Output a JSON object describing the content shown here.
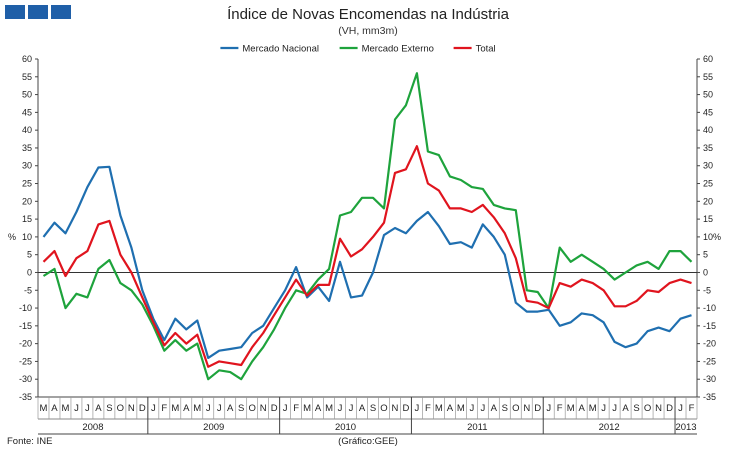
{
  "header": {
    "title": "Índice de Novas Encomendas na Indústria",
    "subtitle": "(VH, mm3m)"
  },
  "footer": {
    "source": "Fonte: INE",
    "chart_note": "(Gráfico:GEE)"
  },
  "colors": {
    "brand": "#1f5fa8",
    "mercado_nacional": "#1f6fb0",
    "mercado_externo": "#1ea33c",
    "total": "#e0141e"
  },
  "chart_data": {
    "type": "line",
    "title": "Índice de Novas Encomendas na Indústria",
    "subtitle": "(VH, mm3m)",
    "ylabel_left": "%",
    "ylabel_right": "%",
    "ylim": [
      -35,
      60
    ],
    "yticks": [
      -35,
      -30,
      -25,
      -20,
      -15,
      -10,
      -5,
      0,
      5,
      10,
      15,
      20,
      25,
      30,
      35,
      40,
      45,
      50,
      55,
      60
    ],
    "legend_position": "top-center",
    "grid": false,
    "x": [
      "M",
      "A",
      "M",
      "J",
      "J",
      "A",
      "S",
      "O",
      "N",
      "D",
      "J",
      "F",
      "M",
      "A",
      "M",
      "J",
      "J",
      "A",
      "S",
      "O",
      "N",
      "D",
      "J",
      "F",
      "M",
      "A",
      "M",
      "J",
      "J",
      "A",
      "S",
      "O",
      "N",
      "D",
      "J",
      "F",
      "M",
      "A",
      "M",
      "J",
      "J",
      "A",
      "S",
      "O",
      "N",
      "D",
      "J",
      "F",
      "M",
      "A",
      "M",
      "J",
      "J",
      "A",
      "S",
      "O",
      "N",
      "D",
      "J",
      "F"
    ],
    "year_groups": [
      {
        "label": "2008",
        "count": 10
      },
      {
        "label": "2009",
        "count": 12
      },
      {
        "label": "2010",
        "count": 12
      },
      {
        "label": "2011",
        "count": 12
      },
      {
        "label": "2012",
        "count": 12
      },
      {
        "label": "2013",
        "count": 2
      }
    ],
    "series": [
      {
        "name": "Mercado Nacional",
        "color": "#1f6fb0",
        "values": [
          10,
          14,
          11,
          17,
          24,
          29.5,
          29.7,
          16,
          7,
          -5,
          -13,
          -19,
          -13,
          -16,
          -13.5,
          -24,
          -22,
          -21.5,
          -21,
          -17,
          -15,
          -10,
          -5,
          1.5,
          -7,
          -4,
          -8,
          3,
          -7,
          -6.5,
          0,
          10.5,
          12.5,
          11,
          14.5,
          17,
          13,
          8,
          8.5,
          7,
          13.5,
          10,
          5,
          -8.5,
          -11,
          -11,
          -10.5,
          -15,
          -14,
          -11.5,
          -12,
          -14,
          -19.5,
          -21,
          -20,
          -16.5,
          -15.5,
          -16.5,
          -13,
          -12
        ]
      },
      {
        "name": "Mercado Externo",
        "color": "#1ea33c",
        "values": [
          -1,
          1,
          -10,
          -6,
          -7,
          1,
          3.5,
          -3,
          -5,
          -9,
          -15,
          -22,
          -19,
          -22,
          -20,
          -30,
          -27.5,
          -28,
          -30,
          -25,
          -21,
          -16,
          -10,
          -5,
          -6,
          -2,
          1,
          16,
          17,
          21,
          21,
          18,
          43,
          47,
          56,
          34,
          33,
          27,
          26,
          24,
          23.5,
          19,
          18,
          17.5,
          -5,
          -5.5,
          -10,
          7,
          3,
          5,
          3,
          1,
          -2,
          0,
          2,
          3,
          1,
          6,
          6,
          3
        ]
      },
      {
        "name": "Total",
        "color": "#e0141e",
        "values": [
          3,
          6,
          -1,
          4,
          6,
          13.5,
          14.5,
          5,
          0,
          -7,
          -14,
          -20.5,
          -17,
          -20,
          -17.5,
          -26.5,
          -25,
          -25.5,
          -26,
          -21,
          -17,
          -12,
          -7,
          -2,
          -6.5,
          -3.5,
          -3.5,
          9.5,
          4.5,
          6.5,
          10,
          14,
          28,
          29,
          35.5,
          25,
          23,
          18,
          18,
          17,
          19,
          15.5,
          11,
          4,
          -8,
          -8.5,
          -10,
          -3,
          -4,
          -2,
          -3,
          -5,
          -9.5,
          -9.5,
          -8,
          -5,
          -5.5,
          -3,
          -2,
          -3
        ]
      }
    ]
  }
}
